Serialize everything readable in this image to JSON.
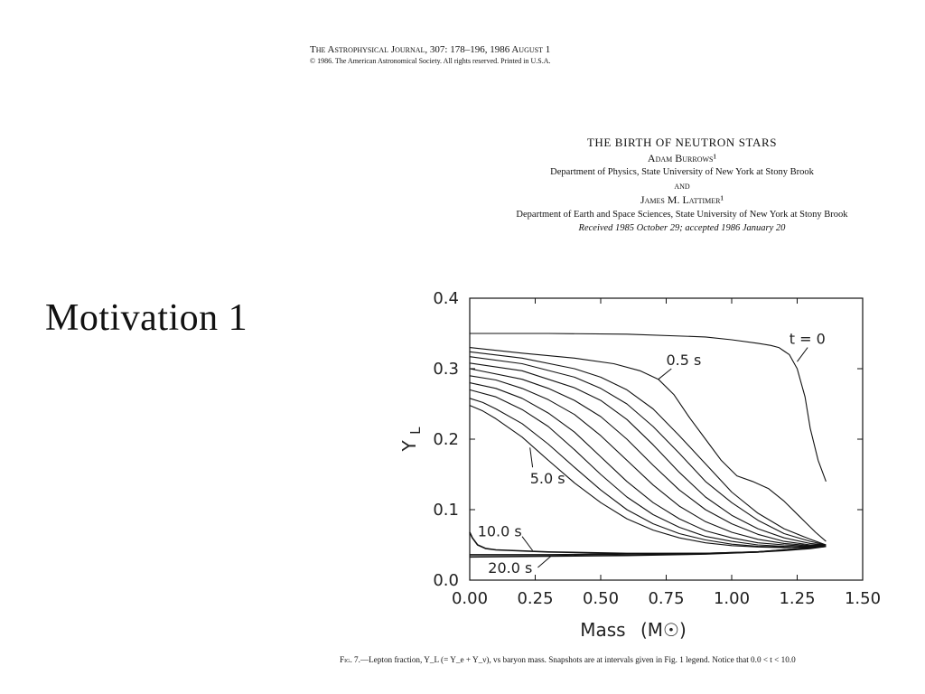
{
  "journal": {
    "line1": "The Astrophysical Journal, 307: 178–196, 1986 August 1",
    "line2": "© 1986. The American Astronomical Society. All rights reserved. Printed in U.S.A."
  },
  "paper": {
    "title": "THE BIRTH OF NEUTRON STARS",
    "author1": "Adam Burrows¹",
    "affil1": "Department of Physics, State University of New York at Stony Brook",
    "and": "and",
    "author2": "James M. Lattimer¹",
    "affil2": "Department of Earth and Space Sciences, State University of New York at Stony Brook",
    "received": "Received 1985 October 29; accepted 1986 January 20"
  },
  "slide": {
    "title": "Motivation 1"
  },
  "caption": {
    "label": "Fig. 7.",
    "text": "—Lepton fraction, Y_L (= Y_e + Y_ν), vs baryon mass. Snapshots are at intervals given in Fig. 1 legend. Notice that 0.0 < t < 10.0"
  },
  "chart_data": {
    "type": "line",
    "xlabel": "Mass",
    "xunit": "(M☉)",
    "ylabel": "Y",
    "ylabel_sub": "L",
    "xlim": [
      0.0,
      1.5
    ],
    "ylim": [
      0.0,
      0.4
    ],
    "x_ticks": [
      "0.00",
      "0.25",
      "0.50",
      "0.75",
      "1.00",
      "1.25",
      "1.50"
    ],
    "y_ticks": [
      "0.0",
      "0.1",
      "0.2",
      "0.3",
      "0.4"
    ],
    "grid": false,
    "annotations": [
      {
        "text": "t = 0",
        "x": 1.22,
        "y": 0.343
      },
      {
        "text": "0.5 s",
        "x": 0.75,
        "y": 0.313
      },
      {
        "text": "5.0 s",
        "x": 0.23,
        "y": 0.145
      },
      {
        "text": "10.0 s",
        "x": 0.03,
        "y": 0.07
      },
      {
        "text": "20.0 s",
        "x": 0.07,
        "y": 0.018
      }
    ],
    "series": [
      {
        "x": [
          0.0,
          0.3,
          0.6,
          0.9,
          1.0,
          1.1,
          1.15,
          1.18,
          1.2,
          1.22,
          1.25,
          1.28,
          1.3,
          1.33,
          1.36
        ],
        "y": [
          0.35,
          0.35,
          0.349,
          0.345,
          0.341,
          0.336,
          0.333,
          0.33,
          0.325,
          0.32,
          0.3,
          0.26,
          0.215,
          0.17,
          0.14
        ]
      },
      {
        "x": [
          0.0,
          0.2,
          0.4,
          0.55,
          0.65,
          0.72,
          0.78,
          0.84,
          0.9,
          0.96,
          1.02,
          1.08,
          1.14,
          1.2,
          1.26,
          1.32,
          1.36
        ],
        "y": [
          0.33,
          0.322,
          0.315,
          0.307,
          0.297,
          0.285,
          0.263,
          0.23,
          0.2,
          0.17,
          0.148,
          0.14,
          0.13,
          0.112,
          0.09,
          0.068,
          0.055
        ]
      },
      {
        "x": [
          0.0,
          0.2,
          0.4,
          0.5,
          0.6,
          0.7,
          0.8,
          0.9,
          1.0,
          1.1,
          1.2,
          1.3,
          1.36
        ],
        "y": [
          0.324,
          0.315,
          0.3,
          0.288,
          0.27,
          0.243,
          0.205,
          0.165,
          0.125,
          0.095,
          0.073,
          0.058,
          0.05
        ]
      },
      {
        "x": [
          0.0,
          0.2,
          0.4,
          0.5,
          0.6,
          0.7,
          0.8,
          0.9,
          1.0,
          1.1,
          1.2,
          1.3,
          1.36
        ],
        "y": [
          0.317,
          0.307,
          0.288,
          0.272,
          0.25,
          0.218,
          0.18,
          0.14,
          0.11,
          0.085,
          0.066,
          0.055,
          0.05
        ]
      },
      {
        "x": [
          0.0,
          0.2,
          0.4,
          0.5,
          0.6,
          0.7,
          0.8,
          0.9,
          1.0,
          1.1,
          1.2,
          1.3,
          1.36
        ],
        "y": [
          0.308,
          0.297,
          0.273,
          0.255,
          0.228,
          0.192,
          0.153,
          0.118,
          0.092,
          0.073,
          0.06,
          0.052,
          0.05
        ]
      },
      {
        "x": [
          0.0,
          0.2,
          0.3,
          0.4,
          0.5,
          0.6,
          0.7,
          0.8,
          0.9,
          1.0,
          1.1,
          1.2,
          1.3,
          1.36
        ],
        "y": [
          0.3,
          0.285,
          0.272,
          0.255,
          0.232,
          0.2,
          0.163,
          0.128,
          0.1,
          0.08,
          0.065,
          0.055,
          0.05,
          0.05
        ]
      },
      {
        "x": [
          0.0,
          0.1,
          0.2,
          0.3,
          0.4,
          0.5,
          0.6,
          0.7,
          0.8,
          0.9,
          1.0,
          1.1,
          1.2,
          1.3,
          1.36
        ],
        "y": [
          0.29,
          0.284,
          0.272,
          0.256,
          0.235,
          0.205,
          0.17,
          0.135,
          0.105,
          0.083,
          0.068,
          0.058,
          0.052,
          0.049,
          0.05
        ]
      },
      {
        "x": [
          0.0,
          0.1,
          0.2,
          0.3,
          0.4,
          0.5,
          0.6,
          0.7,
          0.8,
          0.9,
          1.0,
          1.1,
          1.2,
          1.3,
          1.36
        ],
        "y": [
          0.28,
          0.272,
          0.258,
          0.237,
          0.21,
          0.175,
          0.14,
          0.11,
          0.087,
          0.07,
          0.06,
          0.053,
          0.05,
          0.048,
          0.05
        ]
      },
      {
        "x": [
          0.0,
          0.1,
          0.2,
          0.3,
          0.4,
          0.5,
          0.6,
          0.7,
          0.8,
          0.9,
          1.0,
          1.1,
          1.2,
          1.3,
          1.36
        ],
        "y": [
          0.27,
          0.26,
          0.242,
          0.218,
          0.185,
          0.15,
          0.118,
          0.093,
          0.075,
          0.062,
          0.055,
          0.05,
          0.048,
          0.047,
          0.05
        ]
      },
      {
        "x": [
          0.0,
          0.05,
          0.1,
          0.2,
          0.3,
          0.4,
          0.5,
          0.6,
          0.7,
          0.8,
          0.9,
          1.0,
          1.1,
          1.2,
          1.3,
          1.36
        ],
        "y": [
          0.258,
          0.252,
          0.243,
          0.222,
          0.193,
          0.16,
          0.128,
          0.1,
          0.08,
          0.066,
          0.057,
          0.051,
          0.048,
          0.047,
          0.047,
          0.05
        ]
      },
      {
        "x": [
          0.0,
          0.05,
          0.1,
          0.2,
          0.3,
          0.4,
          0.5,
          0.6,
          0.7,
          0.8,
          0.9,
          1.0,
          1.1,
          1.2,
          1.3,
          1.36
        ],
        "y": [
          0.248,
          0.24,
          0.229,
          0.203,
          0.17,
          0.138,
          0.11,
          0.087,
          0.071,
          0.06,
          0.053,
          0.049,
          0.047,
          0.046,
          0.047,
          0.05
        ]
      },
      {
        "x": [
          0.0,
          0.01,
          0.03,
          0.06,
          0.1,
          0.3,
          0.6,
          0.9,
          1.1,
          1.2,
          1.3,
          1.36
        ],
        "y": [
          0.068,
          0.06,
          0.05,
          0.045,
          0.043,
          0.04,
          0.038,
          0.038,
          0.04,
          0.042,
          0.045,
          0.048
        ]
      },
      {
        "x": [
          0.0,
          0.3,
          0.6,
          0.9,
          1.1,
          1.2,
          1.3,
          1.36
        ],
        "y": [
          0.036,
          0.036,
          0.037,
          0.038,
          0.04,
          0.043,
          0.046,
          0.048
        ]
      },
      {
        "x": [
          0.0,
          0.3,
          0.6,
          0.9,
          1.1,
          1.2,
          1.3,
          1.36
        ],
        "y": [
          0.033,
          0.034,
          0.035,
          0.037,
          0.04,
          0.043,
          0.046,
          0.048
        ]
      }
    ]
  }
}
